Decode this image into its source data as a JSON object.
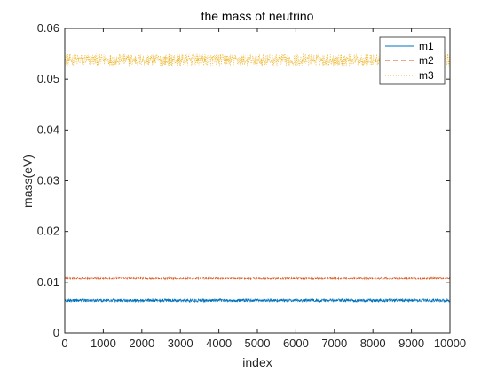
{
  "chart_data": {
    "type": "line",
    "title": "the mass of neutrino",
    "xlabel": "index",
    "ylabel": "mass(eV)",
    "xlim": [
      0,
      10000
    ],
    "ylim": [
      0,
      0.06
    ],
    "xticks": [
      "0",
      "1000",
      "2000",
      "3000",
      "4000",
      "5000",
      "6000",
      "7000",
      "8000",
      "9000",
      "10000"
    ],
    "yticks": [
      "0",
      "0.01",
      "0.02",
      "0.03",
      "0.04",
      "0.05",
      "0.06"
    ],
    "grid": false,
    "legend_position": "top-right",
    "series": [
      {
        "name": "m1",
        "color": "#0072BD",
        "line_style": "solid",
        "mean": 0.0064,
        "spread": 0.0003
      },
      {
        "name": "m2",
        "color": "#D95319",
        "line_style": "dashed",
        "mean": 0.0108,
        "spread": 0.00015
      },
      {
        "name": "m3",
        "color": "#EDB120",
        "line_style": "dotted",
        "mean": 0.0538,
        "spread": 0.0012
      }
    ]
  }
}
